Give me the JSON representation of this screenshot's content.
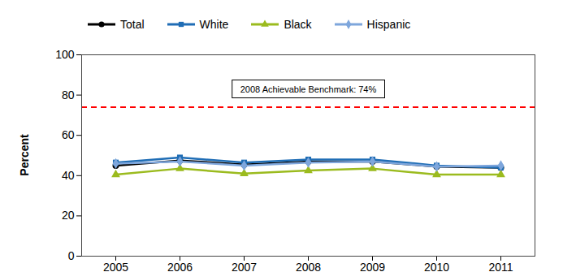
{
  "chart_data": {
    "type": "line",
    "categories": [
      "2005",
      "2006",
      "2007",
      "2008",
      "2009",
      "2010",
      "2011"
    ],
    "series": [
      {
        "name": "Total",
        "color": "#000000",
        "marker": "circle",
        "values": [
          45,
          47.5,
          45.5,
          47,
          47,
          44.5,
          44
        ]
      },
      {
        "name": "White",
        "color": "#1f6db5",
        "marker": "square",
        "values": [
          46.5,
          49,
          46.5,
          48,
          48,
          45,
          44
        ]
      },
      {
        "name": "Black",
        "color": "#9bbb1e",
        "marker": "triangle",
        "values": [
          40.5,
          43.5,
          41,
          42.5,
          43.5,
          40.5,
          40.5
        ]
      },
      {
        "name": "Hispanic",
        "color": "#7ea6dc",
        "marker": "diamond",
        "values": [
          46,
          47,
          45,
          46.5,
          47,
          44.5,
          45
        ]
      }
    ],
    "annotations": [
      {
        "text": "2008 Achievable Benchmark: 74%",
        "y": 74,
        "color": "#ff0000",
        "line_style": "dashed"
      }
    ],
    "y_label": "Percent",
    "ylim": [
      0,
      100
    ],
    "yticks": [
      0,
      20,
      40,
      60,
      80,
      100
    ],
    "grid": false,
    "legend": "top"
  }
}
